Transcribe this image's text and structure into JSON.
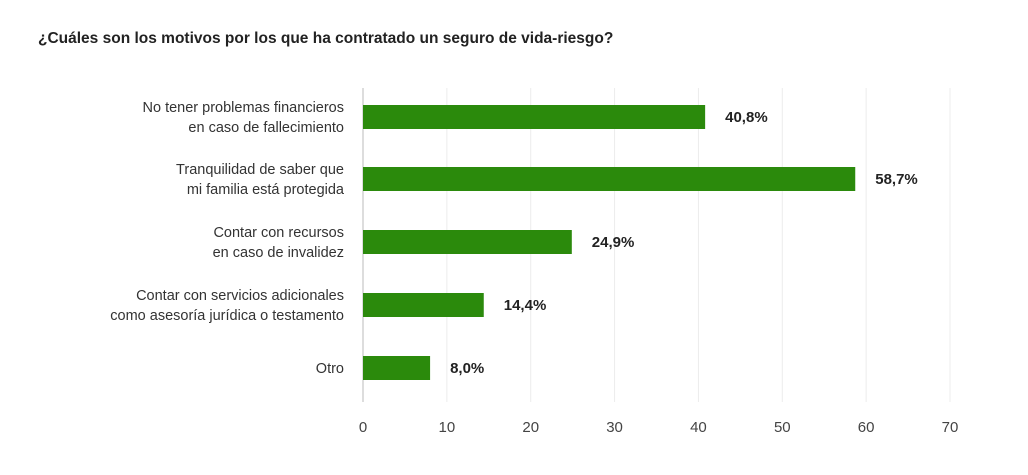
{
  "chart_data": {
    "type": "bar",
    "orientation": "horizontal",
    "title": "¿Cuáles son los motivos por los que ha contratado un seguro de vida-riesgo?",
    "categories": [
      [
        "No tener problemas financieros",
        "en caso de fallecimiento"
      ],
      [
        "Tranquilidad de saber que",
        "mi familia está protegida"
      ],
      [
        "Contar con recursos",
        "en caso de invalidez"
      ],
      [
        "Contar con servicios adicionales",
        "como asesoría jurídica o testamento"
      ],
      [
        "Otro"
      ]
    ],
    "values": [
      40.8,
      58.7,
      24.9,
      14.4,
      8.0
    ],
    "data_labels": [
      "40,8%",
      "58,7%",
      "24,9%",
      "14,4%",
      "8,0%"
    ],
    "xlim": [
      0,
      70
    ],
    "xticks": [
      "0",
      "10",
      "20",
      "30",
      "40",
      "50",
      "60",
      "70"
    ],
    "grid": true,
    "bar_color": "#2b8a0c"
  }
}
